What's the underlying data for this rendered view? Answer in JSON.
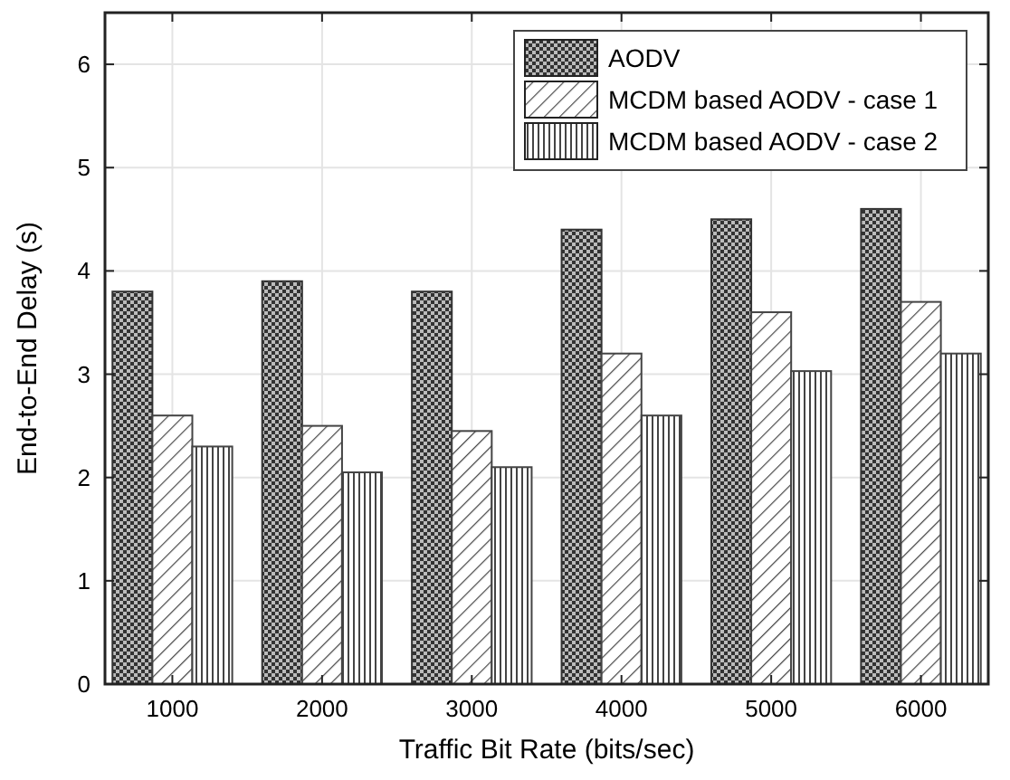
{
  "chart_data": {
    "type": "bar",
    "xlabel": "Traffic Bit Rate (bits/sec)",
    "ylabel": "End-to-End Delay (s)",
    "categories": [
      "1000",
      "2000",
      "3000",
      "4000",
      "5000",
      "6000"
    ],
    "series": [
      {
        "name": "AODV",
        "color": "#333333",
        "values": [
          3.8,
          3.9,
          3.8,
          4.4,
          4.5,
          4.6
        ]
      },
      {
        "name": "MCDM based AODV - case 1",
        "color": "#444444",
        "values": [
          2.6,
          2.5,
          2.45,
          3.2,
          3.6,
          3.7
        ]
      },
      {
        "name": "MCDM based AODV - case 2",
        "color": "#444444",
        "values": [
          2.3,
          2.05,
          2.1,
          2.6,
          3.03,
          3.2
        ]
      }
    ],
    "ylim": [
      0,
      6.5
    ],
    "yticks": [
      0,
      1,
      2,
      3,
      4,
      5,
      6
    ],
    "grid": true,
    "legend": "top right"
  }
}
